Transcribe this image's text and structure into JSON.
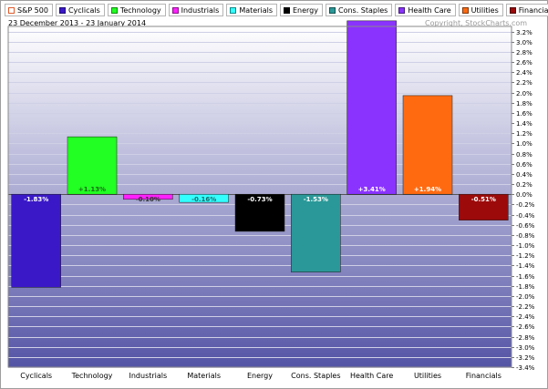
{
  "legend": {
    "items": [
      {
        "label": "S&P 500",
        "color": "#ffffff",
        "border": "#e05a2b"
      },
      {
        "label": "Cyclicals",
        "color": "#3a18c8",
        "border": "#1d0c70"
      },
      {
        "label": "Technology",
        "color": "#22ff22",
        "border": "#118811"
      },
      {
        "label": "Industrials",
        "color": "#ff22ff",
        "border": "#881188"
      },
      {
        "label": "Materials",
        "color": "#33ffff",
        "border": "#118888"
      },
      {
        "label": "Energy",
        "color": "#000000",
        "border": "#000000"
      },
      {
        "label": "Cons. Staples",
        "color": "#2a9898",
        "border": "#155050"
      },
      {
        "label": "Health Care",
        "color": "#8a33ff",
        "border": "#451a80"
      },
      {
        "label": "Utilities",
        "color": "#ff6a11",
        "border": "#803508"
      },
      {
        "label": "Financials",
        "color": "#9c0a0a",
        "border": "#4e0505"
      }
    ]
  },
  "header": {
    "date_range": "23 December 2013 - 23 January 2014",
    "copyright": "Copyright, StockCharts.com"
  },
  "chart_data": {
    "type": "bar",
    "categories": [
      "Cyclicals",
      "Technology",
      "Industrials",
      "Materials",
      "Energy",
      "Cons. Staples",
      "Health Care",
      "Utilities",
      "Financials"
    ],
    "values": [
      -1.83,
      1.13,
      -0.1,
      -0.16,
      -0.73,
      -1.53,
      3.41,
      1.94,
      -0.51
    ],
    "data_labels": [
      "-1.83%",
      "+1.13%",
      "-0.10%",
      "-0.16%",
      "-0.73%",
      "-1.53%",
      "+3.41%",
      "+1.94%",
      "-0.51%"
    ],
    "colors": [
      "#3a18c8",
      "#22ff22",
      "#ff22ff",
      "#33ffff",
      "#000000",
      "#2a9898",
      "#8a33ff",
      "#ff6a11",
      "#9c0a0a"
    ],
    "label_colors": [
      "#ffffff",
      "#1a6b1a",
      "#333333",
      "#1a6b6b",
      "#ffffff",
      "#ffffff",
      "#ffffff",
      "#ffffff",
      "#ffffff"
    ],
    "ylim": [
      -3.4,
      3.3
    ],
    "yticks": [
      3.2,
      3.0,
      2.8,
      2.6,
      2.4,
      2.2,
      2.0,
      1.8,
      1.6,
      1.4,
      1.2,
      1.0,
      0.8,
      0.6,
      0.4,
      0.2,
      0.0,
      -0.2,
      -0.4,
      -0.6,
      -0.8,
      -1.0,
      -1.2,
      -1.4,
      -1.6,
      -1.8,
      -2.0,
      -2.2,
      -2.4,
      -2.6,
      -2.8,
      -3.0,
      -3.2,
      -3.4
    ],
    "ytick_labels": [
      "3.2%",
      "3.0%",
      "2.8%",
      "2.6%",
      "2.4%",
      "2.2%",
      "2.0%",
      "1.8%",
      "1.6%",
      "1.4%",
      "1.2%",
      "1.0%",
      "0.8%",
      "0.6%",
      "0.4%",
      "0.2%",
      "0.0%",
      "-0.2%",
      "-0.4%",
      "-0.6%",
      "-0.8%",
      "-1.0%",
      "-1.2%",
      "-1.4%",
      "-1.6%",
      "-1.8%",
      "-2.0%",
      "-2.2%",
      "-2.4%",
      "-2.6%",
      "-2.8%",
      "-3.0%",
      "-3.2%",
      "-3.4%"
    ],
    "background_top": "#ffffff",
    "background_bottom": "#5454a6",
    "grid": true,
    "legend_position": "top"
  }
}
